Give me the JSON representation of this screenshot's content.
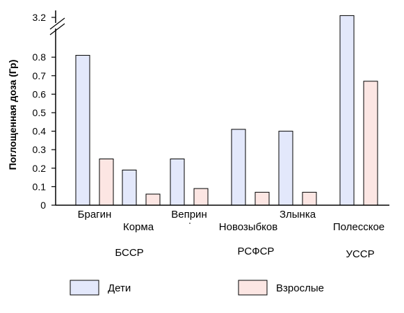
{
  "chart_data": {
    "type": "bar",
    "ylabel": "Поглощенная доза (Гр)",
    "y_break": {
      "from": 0.9,
      "to": 3.1
    },
    "ylim": [
      0,
      3.25
    ],
    "yticks": [
      "0",
      "0.1",
      "0.2",
      "0.3",
      "0.4",
      "0.5",
      "0.6",
      "0.7",
      "0.8",
      "3.2"
    ],
    "categories": [
      "Брагин",
      "Корма",
      "Веприн",
      "Новозыбков",
      "Злынка",
      "Полесское"
    ],
    "groups": [
      "БССР",
      "РСФСР",
      "УССР"
    ],
    "series": [
      {
        "name": "Дети",
        "color": "#e3e8fb",
        "values": [
          0.81,
          0.19,
          0.25,
          0.41,
          0.4,
          3.23
        ]
      },
      {
        "name": "Взрослые",
        "color": "#fce6e3",
        "values": [
          0.25,
          0.06,
          0.09,
          0.07,
          0.07,
          0.67
        ]
      }
    ],
    "grid": false,
    "legend_position": "bottom"
  }
}
